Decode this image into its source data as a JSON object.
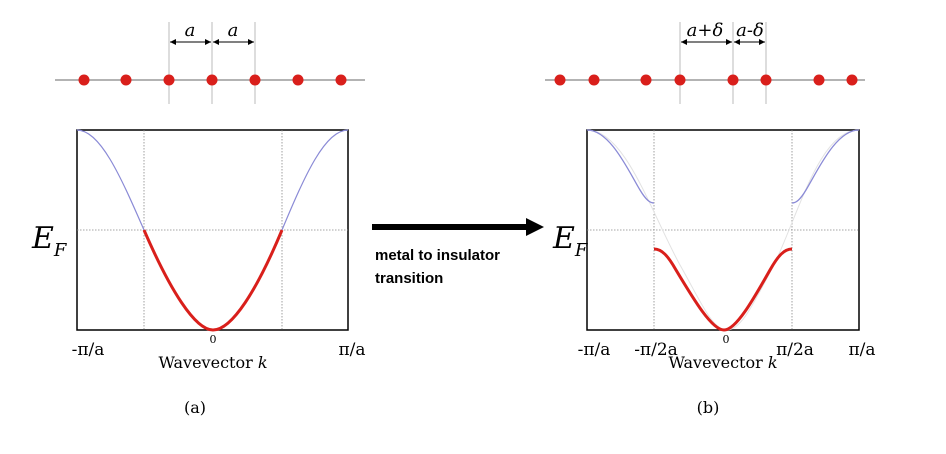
{
  "panel_a": {
    "spacing_labels": [
      "a",
      "a"
    ],
    "energy_label": "E",
    "energy_subscript": "F",
    "x_ticks": [
      "-π/a",
      "0",
      "π/a"
    ],
    "x_label": "Wavevector ",
    "x_label_var": "k",
    "caption": "(a)"
  },
  "panel_b": {
    "spacing_labels": [
      "a+δ",
      "a-δ"
    ],
    "energy_label": "E",
    "energy_subscript": "F",
    "x_ticks": [
      "-π/a",
      "-π/2a",
      "0",
      "π/2a",
      "π/a"
    ],
    "x_label": "Wavevector ",
    "x_label_var": "k",
    "caption": "(b)"
  },
  "arrow_text": [
    "metal to insulator",
    "transition"
  ],
  "colors": {
    "atom": "#d91f1b",
    "occupied_band": "#d91f1b",
    "empty_band": "#8080d0",
    "axis": "#000000",
    "guide": "#999999",
    "arrow": "#000000"
  }
}
